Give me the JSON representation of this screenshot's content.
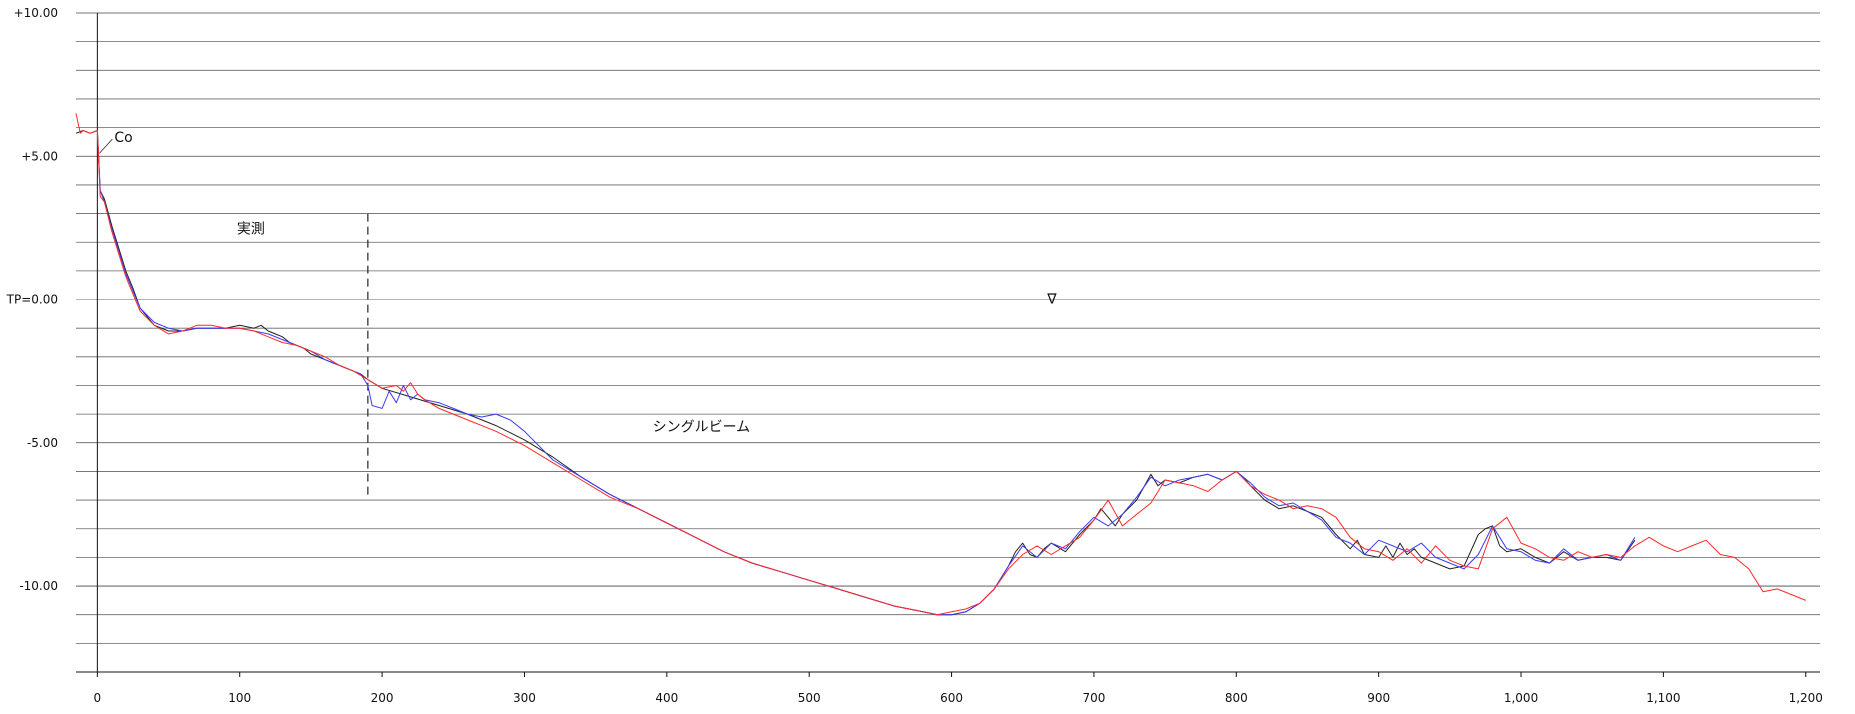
{
  "chart_data": {
    "type": "line",
    "title": "",
    "xlabel": "",
    "ylabel": "",
    "xlim": [
      -15,
      1210
    ],
    "ylim": [
      -13,
      10
    ],
    "x_ticks": [
      0,
      100,
      200,
      300,
      400,
      500,
      600,
      700,
      800,
      900,
      1000,
      1100,
      1200
    ],
    "x_tick_labels": [
      "0",
      "100",
      "200",
      "300",
      "400",
      "500",
      "600",
      "700",
      "800",
      "900",
      "1,000",
      "1,100",
      "1,200"
    ],
    "y_ticks": [
      10,
      5,
      0,
      -5,
      -10
    ],
    "y_tick_labels": [
      "+10.00",
      "+5.00",
      "TP=0.00",
      "-5.00",
      "-10.00"
    ],
    "grid_y_step": 1,
    "grid": true,
    "annotations": {
      "co_label": "Co",
      "measured_label": "実測",
      "singlebeam_label": "シングルビーム",
      "water_level_symbol": "∇",
      "boundary_x": 190,
      "co_x": 0,
      "water_level_x": 670
    },
    "series": [
      {
        "color": "#222222",
        "x": [
          -15,
          -10,
          -5,
          0,
          2,
          5,
          10,
          15,
          20,
          25,
          30,
          40,
          50,
          60,
          70,
          80,
          90,
          100,
          110,
          115,
          120,
          125,
          130,
          135,
          140,
          145,
          150,
          155,
          160,
          165,
          170,
          175,
          180,
          185,
          190,
          200,
          220,
          240,
          260,
          280,
          300,
          320,
          340,
          360,
          380,
          400,
          420,
          440,
          460,
          480,
          500,
          520,
          540,
          560,
          580,
          590,
          600,
          610,
          620,
          630,
          640,
          645,
          650,
          655,
          660,
          665,
          670,
          680,
          690,
          700,
          705,
          710,
          715,
          720,
          730,
          740,
          745,
          750,
          760,
          770,
          780,
          790,
          800,
          805,
          810,
          820,
          830,
          840,
          850,
          860,
          870,
          880,
          885,
          890,
          900,
          905,
          910,
          915,
          920,
          925,
          930,
          940,
          950,
          960,
          970,
          975,
          980,
          985,
          990,
          1000,
          1010,
          1020,
          1030,
          1040,
          1050,
          1060,
          1070,
          1080
        ],
        "y": [
          5.8,
          5.9,
          5.8,
          5.9,
          3.8,
          3.5,
          2.6,
          1.8,
          1.0,
          0.4,
          -0.3,
          -0.9,
          -1.1,
          -1.1,
          -1.0,
          -1.0,
          -1.0,
          -0.9,
          -1.0,
          -0.9,
          -1.1,
          -1.2,
          -1.3,
          -1.5,
          -1.6,
          -1.7,
          -1.9,
          -2.0,
          -2.1,
          -2.2,
          -2.3,
          -2.4,
          -2.5,
          -2.6,
          -2.8,
          -3.1,
          -3.4,
          -3.7,
          -4.0,
          -4.4,
          -4.9,
          -5.5,
          -6.2,
          -6.8,
          -7.3,
          -7.8,
          -8.3,
          -8.8,
          -9.2,
          -9.5,
          -9.8,
          -10.1,
          -10.4,
          -10.7,
          -10.9,
          -11.0,
          -11.0,
          -10.9,
          -10.6,
          -10.1,
          -9.3,
          -8.8,
          -8.5,
          -8.9,
          -9.0,
          -8.7,
          -8.5,
          -8.8,
          -8.2,
          -7.7,
          -7.3,
          -7.6,
          -7.9,
          -7.5,
          -7.0,
          -6.1,
          -6.5,
          -6.3,
          -6.4,
          -6.2,
          -6.1,
          -6.3,
          -6.0,
          -6.2,
          -6.5,
          -7.0,
          -7.3,
          -7.2,
          -7.4,
          -7.6,
          -8.2,
          -8.7,
          -8.4,
          -8.9,
          -9.0,
          -8.6,
          -9.0,
          -8.5,
          -8.9,
          -8.7,
          -9.0,
          -9.2,
          -9.4,
          -9.3,
          -8.2,
          -8.0,
          -7.9,
          -8.6,
          -8.8,
          -8.7,
          -9.0,
          -9.2,
          -8.8,
          -9.1,
          -9.0,
          -9.0,
          -9.1,
          -8.4
        ]
      },
      {
        "color": "#3b3bff",
        "x": [
          0,
          2,
          5,
          10,
          15,
          20,
          25,
          30,
          40,
          50,
          60,
          70,
          80,
          90,
          100,
          110,
          120,
          130,
          140,
          150,
          160,
          170,
          180,
          185,
          190,
          193,
          200,
          205,
          210,
          215,
          220,
          225,
          230,
          240,
          250,
          260,
          270,
          280,
          290,
          300,
          310,
          320,
          340,
          360,
          380,
          400,
          420,
          440,
          460,
          480,
          500,
          520,
          540,
          560,
          580,
          590,
          600,
          610,
          620,
          630,
          640,
          650,
          660,
          670,
          680,
          690,
          700,
          710,
          720,
          730,
          740,
          750,
          760,
          770,
          780,
          790,
          800,
          810,
          820,
          830,
          840,
          850,
          860,
          870,
          880,
          890,
          900,
          910,
          920,
          930,
          940,
          950,
          960,
          970,
          980,
          990,
          1000,
          1010,
          1020,
          1030,
          1040,
          1050,
          1060,
          1070,
          1080
        ],
        "y": [
          5.8,
          3.8,
          3.4,
          2.5,
          1.7,
          0.9,
          0.3,
          -0.3,
          -0.8,
          -1.0,
          -1.1,
          -1.0,
          -1.0,
          -1.0,
          -1.0,
          -1.1,
          -1.2,
          -1.4,
          -1.6,
          -1.8,
          -2.1,
          -2.3,
          -2.5,
          -2.6,
          -3.0,
          -3.7,
          -3.8,
          -3.2,
          -3.6,
          -3.0,
          -3.5,
          -3.3,
          -3.5,
          -3.6,
          -3.8,
          -4.0,
          -4.1,
          -4.0,
          -4.2,
          -4.6,
          -5.1,
          -5.6,
          -6.2,
          -6.8,
          -7.3,
          -7.8,
          -8.3,
          -8.8,
          -9.2,
          -9.5,
          -9.8,
          -10.1,
          -10.4,
          -10.7,
          -10.9,
          -11.0,
          -11.0,
          -10.9,
          -10.6,
          -10.1,
          -9.3,
          -8.6,
          -9.0,
          -8.5,
          -8.7,
          -8.1,
          -7.6,
          -7.9,
          -7.5,
          -6.9,
          -6.2,
          -6.5,
          -6.3,
          -6.2,
          -6.1,
          -6.3,
          -6.0,
          -6.4,
          -6.9,
          -7.2,
          -7.1,
          -7.4,
          -7.7,
          -8.3,
          -8.5,
          -8.9,
          -8.4,
          -8.6,
          -8.8,
          -8.5,
          -9.0,
          -9.2,
          -9.4,
          -8.9,
          -7.9,
          -8.7,
          -8.8,
          -9.1,
          -9.2,
          -8.7,
          -9.1,
          -9.0,
          -8.9,
          -9.1,
          -8.3
        ]
      },
      {
        "color": "#ff2a2a",
        "x": [
          -15,
          -12,
          -10,
          -5,
          0,
          2,
          5,
          10,
          15,
          20,
          25,
          30,
          40,
          50,
          60,
          70,
          80,
          90,
          100,
          110,
          120,
          130,
          140,
          150,
          160,
          170,
          180,
          190,
          200,
          210,
          215,
          220,
          225,
          230,
          240,
          260,
          280,
          300,
          320,
          340,
          360,
          380,
          400,
          420,
          440,
          460,
          480,
          500,
          520,
          540,
          560,
          580,
          590,
          600,
          610,
          620,
          630,
          640,
          650,
          660,
          670,
          680,
          690,
          700,
          710,
          720,
          730,
          740,
          750,
          760,
          770,
          780,
          790,
          800,
          810,
          820,
          830,
          840,
          850,
          860,
          870,
          880,
          890,
          900,
          910,
          920,
          930,
          940,
          950,
          960,
          970,
          980,
          990,
          1000,
          1010,
          1020,
          1030,
          1040,
          1050,
          1060,
          1070,
          1080,
          1090,
          1100,
          1110,
          1120,
          1130,
          1140,
          1150,
          1160,
          1170,
          1180,
          1190,
          1200
        ],
        "y": [
          6.5,
          5.8,
          5.9,
          5.8,
          5.9,
          3.6,
          3.4,
          2.4,
          1.6,
          0.8,
          0.2,
          -0.4,
          -0.9,
          -1.2,
          -1.1,
          -0.9,
          -0.9,
          -1.0,
          -1.0,
          -1.1,
          -1.3,
          -1.5,
          -1.6,
          -1.8,
          -2.0,
          -2.3,
          -2.5,
          -2.8,
          -3.1,
          -3.0,
          -3.2,
          -2.9,
          -3.3,
          -3.5,
          -3.8,
          -4.2,
          -4.6,
          -5.1,
          -5.7,
          -6.3,
          -6.9,
          -7.3,
          -7.8,
          -8.3,
          -8.8,
          -9.2,
          -9.5,
          -9.8,
          -10.1,
          -10.4,
          -10.7,
          -10.9,
          -11.0,
          -10.9,
          -10.8,
          -10.6,
          -10.1,
          -9.4,
          -8.9,
          -8.6,
          -8.9,
          -8.6,
          -8.3,
          -7.7,
          -7.0,
          -7.9,
          -7.5,
          -7.1,
          -6.3,
          -6.4,
          -6.5,
          -6.7,
          -6.3,
          -6.0,
          -6.5,
          -6.8,
          -7.0,
          -7.3,
          -7.2,
          -7.3,
          -7.6,
          -8.3,
          -8.7,
          -8.8,
          -9.1,
          -8.7,
          -9.2,
          -8.6,
          -9.1,
          -9.3,
          -9.4,
          -8.0,
          -7.6,
          -8.5,
          -8.7,
          -9.0,
          -9.1,
          -8.8,
          -9.0,
          -8.9,
          -9.0,
          -8.6,
          -8.3,
          -8.6,
          -8.8,
          -8.6,
          -8.4,
          -8.9,
          -9.0,
          -9.4,
          -10.2,
          -10.1,
          -10.3,
          -10.5
        ]
      }
    ]
  }
}
